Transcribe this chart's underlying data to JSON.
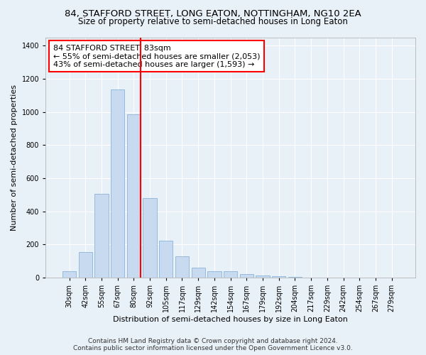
{
  "title_line1": "84, STAFFORD STREET, LONG EATON, NOTTINGHAM, NG10 2EA",
  "title_line2": "Size of property relative to semi-detached houses in Long Eaton",
  "xlabel": "Distribution of semi-detached houses by size in Long Eaton",
  "ylabel": "Number of semi-detached properties",
  "categories": [
    "30sqm",
    "42sqm",
    "55sqm",
    "67sqm",
    "80sqm",
    "92sqm",
    "105sqm",
    "117sqm",
    "129sqm",
    "142sqm",
    "154sqm",
    "167sqm",
    "179sqm",
    "192sqm",
    "204sqm",
    "217sqm",
    "229sqm",
    "242sqm",
    "254sqm",
    "267sqm",
    "279sqm"
  ],
  "values": [
    38,
    155,
    505,
    1135,
    985,
    480,
    225,
    130,
    62,
    40,
    40,
    22,
    15,
    8,
    5,
    2,
    0,
    0,
    0,
    0,
    0
  ],
  "bar_color": "#c8daf0",
  "bar_edge_color": "#8ab4d8",
  "highlight_bar_index": 4,
  "vline_color": "red",
  "annotation_text": "84 STAFFORD STREET: 83sqm\n← 55% of semi-detached houses are smaller (2,053)\n43% of semi-detached houses are larger (1,593) →",
  "annotation_box_color": "white",
  "annotation_box_edge_color": "red",
  "ylim": [
    0,
    1450
  ],
  "yticks": [
    0,
    200,
    400,
    600,
    800,
    1000,
    1200,
    1400
  ],
  "background_color": "#e8f0f8",
  "grid_color": "white",
  "footer_line1": "Contains HM Land Registry data © Crown copyright and database right 2024.",
  "footer_line2": "Contains public sector information licensed under the Open Government Licence v3.0.",
  "title_fontsize": 9.5,
  "subtitle_fontsize": 8.5,
  "axis_label_fontsize": 8,
  "tick_fontsize": 7,
  "annotation_fontsize": 8,
  "footer_fontsize": 6.5
}
